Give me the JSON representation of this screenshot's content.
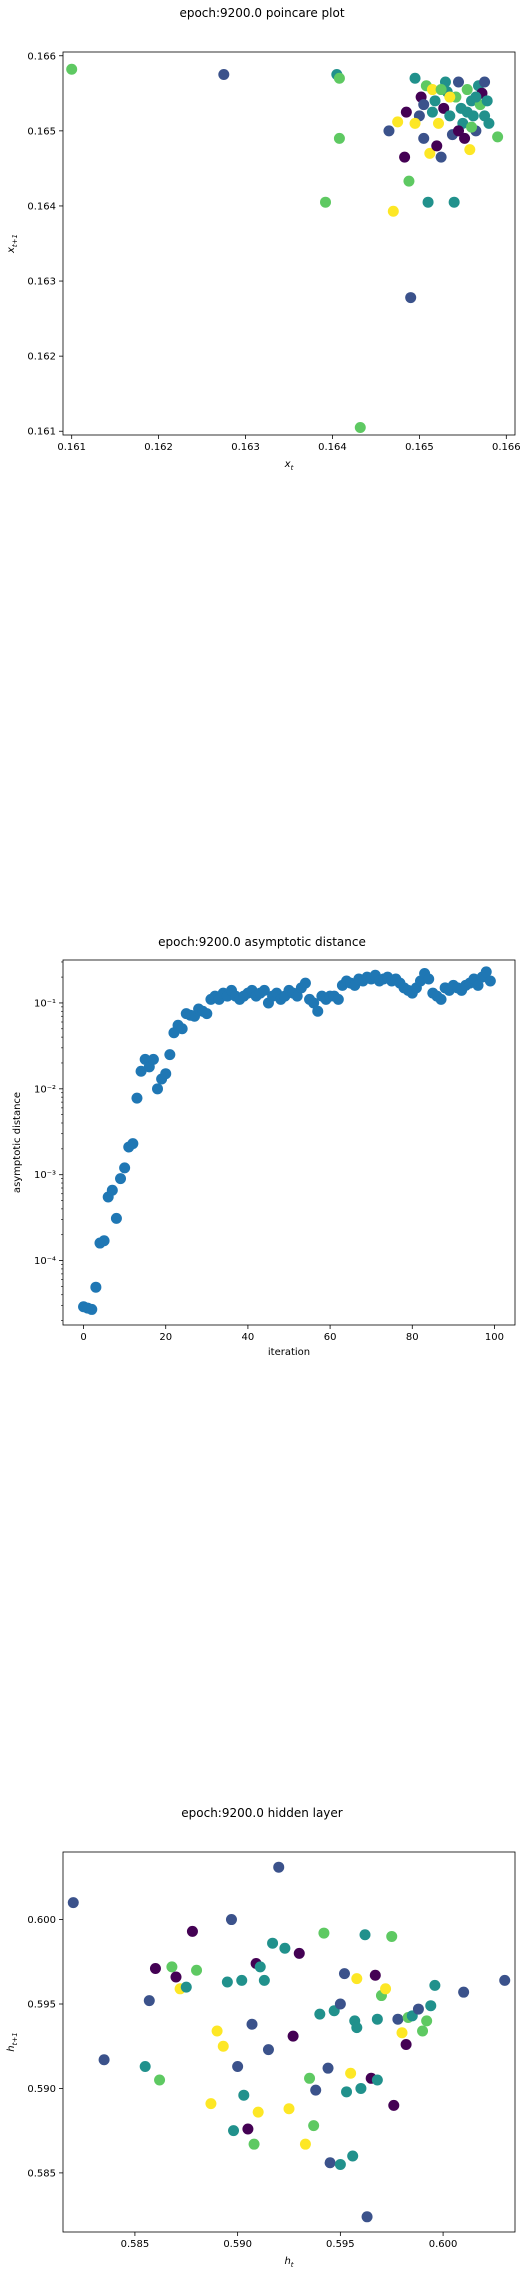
{
  "chart_data": [
    {
      "type": "scatter",
      "title": "epoch:9200.0 poincare plot",
      "xlabel": "x_t",
      "ylabel": "x_{t+1}",
      "xlim": [
        0.1609,
        0.1661
      ],
      "ylim": [
        0.16095,
        0.16605
      ],
      "xticks": [
        "0.161",
        "0.162",
        "0.163",
        "0.164",
        "0.165",
        "0.166"
      ],
      "yticks": [
        "0.161",
        "0.162",
        "0.163",
        "0.164",
        "0.165",
        "0.166"
      ],
      "colormap": [
        "#440154",
        "#3b528b",
        "#21918c",
        "#5ec962",
        "#fde725"
      ],
      "points": [
        {
          "x": 0.161,
          "y": 0.16582,
          "c": 0.85
        },
        {
          "x": 0.16275,
          "y": 0.16575,
          "c": 0.3
        },
        {
          "x": 0.16405,
          "y": 0.16575,
          "c": 0.6
        },
        {
          "x": 0.16408,
          "y": 0.1657,
          "c": 0.8
        },
        {
          "x": 0.16408,
          "y": 0.1649,
          "c": 0.85
        },
        {
          "x": 0.16392,
          "y": 0.16405,
          "c": 0.85
        },
        {
          "x": 0.16432,
          "y": 0.16105,
          "c": 0.85
        },
        {
          "x": 0.16465,
          "y": 0.165,
          "c": 0.3
        },
        {
          "x": 0.1647,
          "y": 0.16393,
          "c": 0.9
        },
        {
          "x": 0.16475,
          "y": 0.16512,
          "c": 0.95
        },
        {
          "x": 0.16483,
          "y": 0.16465,
          "c": 0.0
        },
        {
          "x": 0.16488,
          "y": 0.16433,
          "c": 0.85
        },
        {
          "x": 0.1649,
          "y": 0.16278,
          "c": 0.3
        },
        {
          "x": 0.16495,
          "y": 0.1657,
          "c": 0.6
        },
        {
          "x": 0.165,
          "y": 0.1652,
          "c": 0.2
        },
        {
          "x": 0.16502,
          "y": 0.16545,
          "c": 0.1
        },
        {
          "x": 0.16505,
          "y": 0.1649,
          "c": 0.3
        },
        {
          "x": 0.16508,
          "y": 0.1656,
          "c": 0.8
        },
        {
          "x": 0.1651,
          "y": 0.16405,
          "c": 0.6
        },
        {
          "x": 0.16512,
          "y": 0.1647,
          "c": 0.9
        },
        {
          "x": 0.16515,
          "y": 0.16555,
          "c": 0.95
        },
        {
          "x": 0.16518,
          "y": 0.1654,
          "c": 0.4
        },
        {
          "x": 0.1652,
          "y": 0.1648,
          "c": 0.0
        },
        {
          "x": 0.16522,
          "y": 0.1651,
          "c": 0.9
        },
        {
          "x": 0.16525,
          "y": 0.16465,
          "c": 0.3
        },
        {
          "x": 0.16528,
          "y": 0.1653,
          "c": 0.1
        },
        {
          "x": 0.1653,
          "y": 0.16565,
          "c": 0.5
        },
        {
          "x": 0.16532,
          "y": 0.16552,
          "c": 0.6
        },
        {
          "x": 0.16535,
          "y": 0.1652,
          "c": 0.4
        },
        {
          "x": 0.16538,
          "y": 0.16495,
          "c": 0.2
        },
        {
          "x": 0.1654,
          "y": 0.16405,
          "c": 0.5
        },
        {
          "x": 0.16542,
          "y": 0.16545,
          "c": 0.7
        },
        {
          "x": 0.16545,
          "y": 0.16565,
          "c": 0.3
        },
        {
          "x": 0.16548,
          "y": 0.1653,
          "c": 0.5
        },
        {
          "x": 0.1655,
          "y": 0.1651,
          "c": 0.6
        },
        {
          "x": 0.16552,
          "y": 0.1649,
          "c": 0.1
        },
        {
          "x": 0.16555,
          "y": 0.16555,
          "c": 0.7
        },
        {
          "x": 0.16558,
          "y": 0.16475,
          "c": 0.95
        },
        {
          "x": 0.1656,
          "y": 0.1654,
          "c": 0.4
        },
        {
          "x": 0.16562,
          "y": 0.1652,
          "c": 0.6
        },
        {
          "x": 0.16565,
          "y": 0.165,
          "c": 0.2
        },
        {
          "x": 0.16568,
          "y": 0.1656,
          "c": 0.5
        },
        {
          "x": 0.1657,
          "y": 0.16535,
          "c": 0.7
        },
        {
          "x": 0.16572,
          "y": 0.1655,
          "c": 0.1
        },
        {
          "x": 0.16575,
          "y": 0.1652,
          "c": 0.5
        },
        {
          "x": 0.16578,
          "y": 0.1654,
          "c": 0.4
        },
        {
          "x": 0.1658,
          "y": 0.1651,
          "c": 0.6
        },
        {
          "x": 0.16545,
          "y": 0.165,
          "c": 0.0
        },
        {
          "x": 0.16535,
          "y": 0.16545,
          "c": 0.9
        },
        {
          "x": 0.16525,
          "y": 0.16555,
          "c": 0.7
        },
        {
          "x": 0.16515,
          "y": 0.16525,
          "c": 0.5
        },
        {
          "x": 0.16505,
          "y": 0.16535,
          "c": 0.35
        },
        {
          "x": 0.16555,
          "y": 0.16525,
          "c": 0.45
        },
        {
          "x": 0.16565,
          "y": 0.16545,
          "c": 0.55
        },
        {
          "x": 0.16575,
          "y": 0.16565,
          "c": 0.25
        },
        {
          "x": 0.1656,
          "y": 0.16505,
          "c": 0.65
        },
        {
          "x": 0.1659,
          "y": 0.16492,
          "c": 0.8
        },
        {
          "x": 0.16495,
          "y": 0.1651,
          "c": 0.95
        },
        {
          "x": 0.16485,
          "y": 0.16525,
          "c": 0.05
        }
      ]
    },
    {
      "type": "scatter",
      "title": "epoch:9200.0 asymptotic distance",
      "xlabel": "iteration",
      "ylabel": "asymptotic distance",
      "yscale": "log",
      "xlim": [
        -5,
        105
      ],
      "ylim_log10": [
        -4.75,
        -0.5
      ],
      "xticks": [
        "0",
        "20",
        "40",
        "60",
        "80",
        "100"
      ],
      "yticks": [
        "10⁻⁴",
        "10⁻³",
        "10⁻²",
        "10⁻¹"
      ],
      "color": "#1f77b4",
      "x": [
        0,
        1,
        2,
        3,
        4,
        5,
        6,
        7,
        8,
        9,
        10,
        11,
        12,
        13,
        14,
        15,
        16,
        17,
        18,
        19,
        20,
        21,
        22,
        23,
        24,
        25,
        26,
        27,
        28,
        29,
        30,
        31,
        32,
        33,
        34,
        35,
        36,
        37,
        38,
        39,
        40,
        41,
        42,
        43,
        44,
        45,
        46,
        47,
        48,
        49,
        50,
        51,
        52,
        53,
        54,
        55,
        56,
        57,
        58,
        59,
        60,
        61,
        62,
        63,
        64,
        65,
        66,
        67,
        68,
        69,
        70,
        71,
        72,
        73,
        74,
        75,
        76,
        77,
        78,
        79,
        80,
        81,
        82,
        83,
        84,
        85,
        86,
        87,
        88,
        89,
        90,
        91,
        92,
        93,
        94,
        95,
        96,
        97,
        98,
        99
      ],
      "y": [
        2.9e-05,
        2.8e-05,
        2.7e-05,
        4.9e-05,
        0.00016,
        0.00017,
        0.00055,
        0.00066,
        0.00031,
        0.0009,
        0.0012,
        0.0021,
        0.0023,
        0.0078,
        0.016,
        0.022,
        0.018,
        0.022,
        0.01,
        0.013,
        0.015,
        0.025,
        0.045,
        0.055,
        0.05,
        0.075,
        0.072,
        0.07,
        0.085,
        0.08,
        0.075,
        0.11,
        0.12,
        0.11,
        0.13,
        0.12,
        0.14,
        0.12,
        0.11,
        0.12,
        0.13,
        0.14,
        0.12,
        0.13,
        0.14,
        0.1,
        0.12,
        0.13,
        0.11,
        0.12,
        0.14,
        0.13,
        0.12,
        0.15,
        0.17,
        0.11,
        0.1,
        0.08,
        0.12,
        0.11,
        0.12,
        0.12,
        0.11,
        0.16,
        0.18,
        0.17,
        0.16,
        0.19,
        0.18,
        0.2,
        0.19,
        0.21,
        0.18,
        0.19,
        0.2,
        0.18,
        0.19,
        0.17,
        0.15,
        0.14,
        0.13,
        0.15,
        0.18,
        0.22,
        0.19,
        0.13,
        0.12,
        0.11,
        0.15,
        0.14,
        0.16,
        0.15,
        0.14,
        0.16,
        0.17,
        0.19,
        0.16,
        0.2,
        0.23,
        0.18
      ]
    },
    {
      "type": "scatter",
      "title": "epoch:9200.0 hidden layer",
      "xlabel": "h_t",
      "ylabel": "h_{t+1}",
      "xlim": [
        0.5815,
        0.6035
      ],
      "ylim": [
        0.5815,
        0.604
      ],
      "xticks": [
        "0.585",
        "0.590",
        "0.595",
        "0.600"
      ],
      "yticks": [
        "0.585",
        "0.590",
        "0.595",
        "0.600"
      ],
      "colormap": [
        "#440154",
        "#3b528b",
        "#21918c",
        "#5ec962",
        "#fde725"
      ],
      "points": [
        {
          "x": 0.582,
          "y": 0.601,
          "c": 0.3
        },
        {
          "x": 0.5835,
          "y": 0.5917,
          "c": 0.3
        },
        {
          "x": 0.5855,
          "y": 0.5913,
          "c": 0.6
        },
        {
          "x": 0.5857,
          "y": 0.5952,
          "c": 0.3
        },
        {
          "x": 0.586,
          "y": 0.5971,
          "c": 0.1
        },
        {
          "x": 0.5862,
          "y": 0.5905,
          "c": 0.7
        },
        {
          "x": 0.5868,
          "y": 0.5972,
          "c": 0.7
        },
        {
          "x": 0.587,
          "y": 0.5966,
          "c": 0.1
        },
        {
          "x": 0.5872,
          "y": 0.5959,
          "c": 0.95
        },
        {
          "x": 0.5875,
          "y": 0.596,
          "c": 0.6
        },
        {
          "x": 0.5878,
          "y": 0.5993,
          "c": 0.1
        },
        {
          "x": 0.588,
          "y": 0.597,
          "c": 0.85
        },
        {
          "x": 0.5887,
          "y": 0.5891,
          "c": 0.9
        },
        {
          "x": 0.589,
          "y": 0.5934,
          "c": 0.9
        },
        {
          "x": 0.5893,
          "y": 0.5925,
          "c": 0.9
        },
        {
          "x": 0.5895,
          "y": 0.5963,
          "c": 0.5
        },
        {
          "x": 0.5897,
          "y": 0.6,
          "c": 0.3
        },
        {
          "x": 0.5898,
          "y": 0.5875,
          "c": 0.6
        },
        {
          "x": 0.59,
          "y": 0.5913,
          "c": 0.3
        },
        {
          "x": 0.5902,
          "y": 0.5964,
          "c": 0.6
        },
        {
          "x": 0.5903,
          "y": 0.5896,
          "c": 0.5
        },
        {
          "x": 0.5905,
          "y": 0.5876,
          "c": 0.1
        },
        {
          "x": 0.5907,
          "y": 0.5938,
          "c": 0.3
        },
        {
          "x": 0.5908,
          "y": 0.5867,
          "c": 0.7
        },
        {
          "x": 0.5909,
          "y": 0.5974,
          "c": 0.0
        },
        {
          "x": 0.591,
          "y": 0.5886,
          "c": 0.9
        },
        {
          "x": 0.5911,
          "y": 0.5972,
          "c": 0.4
        },
        {
          "x": 0.5913,
          "y": 0.5964,
          "c": 0.5
        },
        {
          "x": 0.5915,
          "y": 0.5923,
          "c": 0.3
        },
        {
          "x": 0.5917,
          "y": 0.5986,
          "c": 0.6
        },
        {
          "x": 0.592,
          "y": 0.6031,
          "c": 0.3
        },
        {
          "x": 0.5923,
          "y": 0.5983,
          "c": 0.6
        },
        {
          "x": 0.5925,
          "y": 0.5888,
          "c": 0.9
        },
        {
          "x": 0.5927,
          "y": 0.5931,
          "c": 0.0
        },
        {
          "x": 0.593,
          "y": 0.598,
          "c": 0.1
        },
        {
          "x": 0.5933,
          "y": 0.5867,
          "c": 0.9
        },
        {
          "x": 0.5935,
          "y": 0.5906,
          "c": 0.8
        },
        {
          "x": 0.5937,
          "y": 0.5878,
          "c": 0.7
        },
        {
          "x": 0.5938,
          "y": 0.5899,
          "c": 0.3
        },
        {
          "x": 0.594,
          "y": 0.5944,
          "c": 0.6
        },
        {
          "x": 0.5942,
          "y": 0.5992,
          "c": 0.7
        },
        {
          "x": 0.5944,
          "y": 0.5912,
          "c": 0.3
        },
        {
          "x": 0.5945,
          "y": 0.5856,
          "c": 0.3
        },
        {
          "x": 0.5947,
          "y": 0.5946,
          "c": 0.5
        },
        {
          "x": 0.595,
          "y": 0.5855,
          "c": 0.6
        },
        {
          "x": 0.5952,
          "y": 0.5968,
          "c": 0.3
        },
        {
          "x": 0.5953,
          "y": 0.5898,
          "c": 0.6
        },
        {
          "x": 0.5955,
          "y": 0.5909,
          "c": 0.9
        },
        {
          "x": 0.5956,
          "y": 0.586,
          "c": 0.6
        },
        {
          "x": 0.5957,
          "y": 0.594,
          "c": 0.4
        },
        {
          "x": 0.5958,
          "y": 0.5965,
          "c": 0.95
        },
        {
          "x": 0.596,
          "y": 0.59,
          "c": 0.5
        },
        {
          "x": 0.5962,
          "y": 0.5991,
          "c": 0.5
        },
        {
          "x": 0.5963,
          "y": 0.5824,
          "c": 0.3
        },
        {
          "x": 0.5965,
          "y": 0.5906,
          "c": 0.1
        },
        {
          "x": 0.5967,
          "y": 0.5967,
          "c": 0.1
        },
        {
          "x": 0.5968,
          "y": 0.5941,
          "c": 0.5
        },
        {
          "x": 0.597,
          "y": 0.5955,
          "c": 0.8
        },
        {
          "x": 0.5972,
          "y": 0.5959,
          "c": 0.9
        },
        {
          "x": 0.5975,
          "y": 0.599,
          "c": 0.7
        },
        {
          "x": 0.5976,
          "y": 0.589,
          "c": 0.0
        },
        {
          "x": 0.5978,
          "y": 0.5941,
          "c": 0.2
        },
        {
          "x": 0.598,
          "y": 0.5933,
          "c": 0.95
        },
        {
          "x": 0.5982,
          "y": 0.5926,
          "c": 0.1
        },
        {
          "x": 0.5983,
          "y": 0.5942,
          "c": 0.7
        },
        {
          "x": 0.5985,
          "y": 0.5943,
          "c": 0.6
        },
        {
          "x": 0.5988,
          "y": 0.5947,
          "c": 0.3
        },
        {
          "x": 0.599,
          "y": 0.5934,
          "c": 0.7
        },
        {
          "x": 0.5992,
          "y": 0.594,
          "c": 0.85
        },
        {
          "x": 0.5994,
          "y": 0.5949,
          "c": 0.4
        },
        {
          "x": 0.5996,
          "y": 0.5961,
          "c": 0.5
        },
        {
          "x": 0.601,
          "y": 0.5957,
          "c": 0.3
        },
        {
          "x": 0.603,
          "y": 0.5964,
          "c": 0.3
        },
        {
          "x": 0.5958,
          "y": 0.5936,
          "c": 0.4
        },
        {
          "x": 0.595,
          "y": 0.595,
          "c": 0.2
        },
        {
          "x": 0.5968,
          "y": 0.5905,
          "c": 0.6
        }
      ]
    }
  ]
}
